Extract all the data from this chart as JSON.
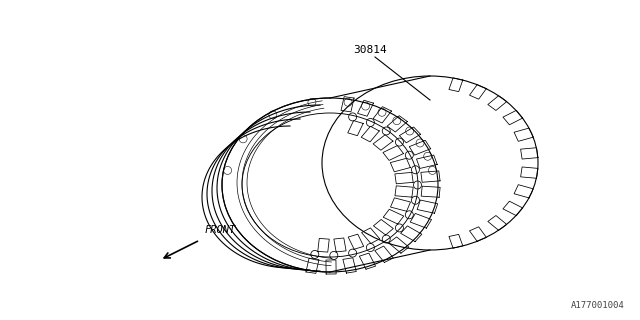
{
  "background_color": "#ffffff",
  "part_number": "30814",
  "front_label": "FRONT",
  "diagram_id": "A177001004",
  "line_color": "#000000",
  "text_color": "#000000",
  "lw": 0.8,
  "fig_width": 6.4,
  "fig_height": 3.2,
  "dpi": 100
}
